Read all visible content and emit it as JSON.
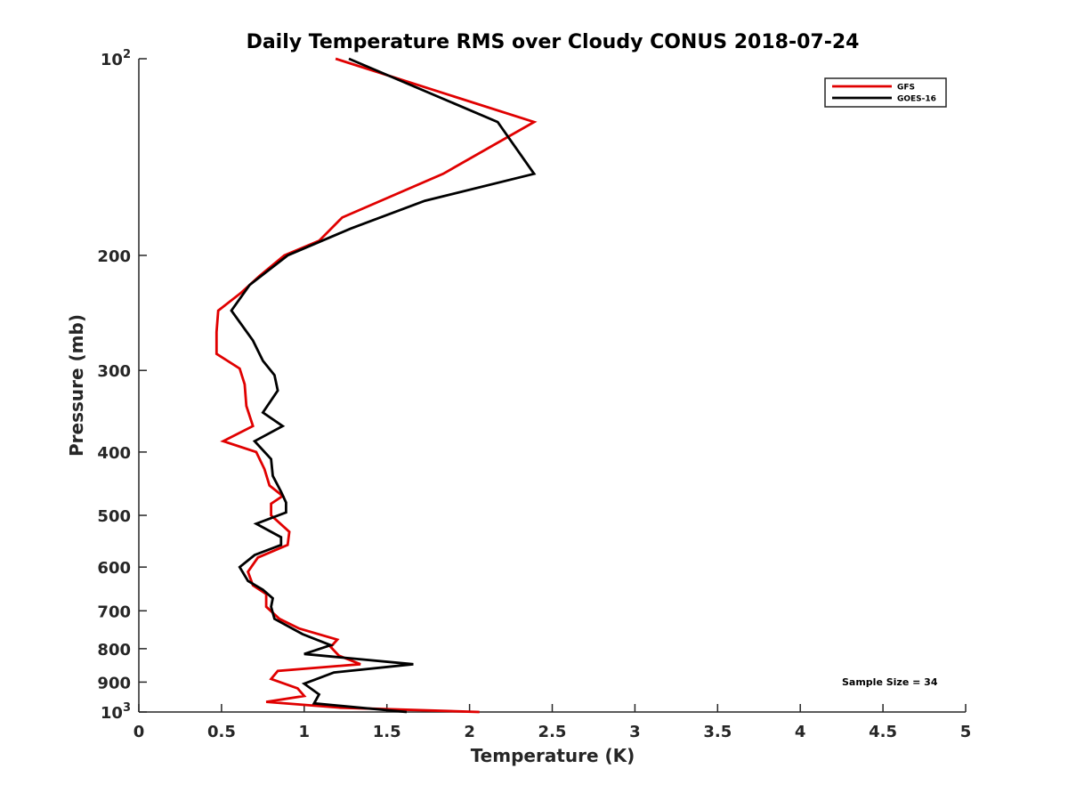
{
  "chart_data": {
    "type": "line",
    "title": "Daily Temperature RMS over Cloudy CONUS 2018-07-24",
    "xlabel": "Temperature (K)",
    "ylabel": "Pressure (mb)",
    "xlim": [
      0,
      5
    ],
    "ylim": [
      100,
      1000
    ],
    "yscale": "log",
    "y_reversed": true,
    "x_ticks": [
      0,
      0.5,
      1,
      1.5,
      2,
      2.5,
      3,
      3.5,
      4,
      4.5,
      5
    ],
    "x_tick_labels": [
      "0",
      "0.5",
      "1",
      "1.5",
      "2",
      "2.5",
      "3",
      "3.5",
      "4",
      "4.5",
      "5"
    ],
    "y_ticks": [
      100,
      200,
      300,
      400,
      500,
      600,
      700,
      800,
      900,
      1000
    ],
    "y_tick_labels": [
      "10^2",
      "200",
      "300",
      "400",
      "500",
      "600",
      "700",
      "800",
      "900",
      "10^3"
    ],
    "grid": false,
    "legend_position": "top-right",
    "annotation": "Sample Size = 34",
    "series": [
      {
        "name": "GFS",
        "color": "#e00000",
        "points": [
          [
            1.19,
            100
          ],
          [
            2.39,
            125
          ],
          [
            1.84,
            150
          ],
          [
            1.23,
            175
          ],
          [
            1.09,
            190
          ],
          [
            0.88,
            200
          ],
          [
            0.73,
            215
          ],
          [
            0.62,
            228
          ],
          [
            0.48,
            243
          ],
          [
            0.47,
            262
          ],
          [
            0.47,
            283
          ],
          [
            0.61,
            298
          ],
          [
            0.64,
            315
          ],
          [
            0.65,
            340
          ],
          [
            0.69,
            365
          ],
          [
            0.51,
            385
          ],
          [
            0.71,
            400
          ],
          [
            0.76,
            425
          ],
          [
            0.79,
            450
          ],
          [
            0.87,
            467
          ],
          [
            0.8,
            480
          ],
          [
            0.8,
            500
          ],
          [
            0.91,
            530
          ],
          [
            0.9,
            555
          ],
          [
            0.72,
            580
          ],
          [
            0.66,
            610
          ],
          [
            0.69,
            640
          ],
          [
            0.77,
            660
          ],
          [
            0.77,
            690
          ],
          [
            0.85,
            720
          ],
          [
            0.97,
            745
          ],
          [
            1.2,
            775
          ],
          [
            1.16,
            795
          ],
          [
            1.21,
            820
          ],
          [
            1.34,
            845
          ],
          [
            0.84,
            865
          ],
          [
            0.8,
            890
          ],
          [
            0.96,
            920
          ],
          [
            1.0,
            945
          ],
          [
            0.77,
            965
          ],
          [
            1.22,
            985
          ],
          [
            2.06,
            1000
          ]
        ]
      },
      {
        "name": "GOES-16",
        "color": "#000000",
        "points": [
          [
            1.27,
            100
          ],
          [
            2.17,
            125
          ],
          [
            2.39,
            150
          ],
          [
            1.73,
            165
          ],
          [
            1.28,
            182
          ],
          [
            0.9,
            200
          ],
          [
            0.67,
            222
          ],
          [
            0.56,
            243
          ],
          [
            0.69,
            270
          ],
          [
            0.75,
            290
          ],
          [
            0.82,
            305
          ],
          [
            0.84,
            322
          ],
          [
            0.75,
            348
          ],
          [
            0.87,
            365
          ],
          [
            0.7,
            385
          ],
          [
            0.8,
            410
          ],
          [
            0.81,
            435
          ],
          [
            0.86,
            460
          ],
          [
            0.89,
            478
          ],
          [
            0.89,
            495
          ],
          [
            0.71,
            515
          ],
          [
            0.86,
            540
          ],
          [
            0.86,
            555
          ],
          [
            0.7,
            575
          ],
          [
            0.61,
            600
          ],
          [
            0.66,
            630
          ],
          [
            0.75,
            650
          ],
          [
            0.81,
            670
          ],
          [
            0.8,
            690
          ],
          [
            0.82,
            720
          ],
          [
            0.99,
            760
          ],
          [
            1.16,
            790
          ],
          [
            1.0,
            815
          ],
          [
            1.66,
            845
          ],
          [
            1.18,
            870
          ],
          [
            1.0,
            905
          ],
          [
            1.09,
            940
          ],
          [
            1.06,
            970
          ],
          [
            1.62,
            1000
          ]
        ]
      }
    ]
  }
}
